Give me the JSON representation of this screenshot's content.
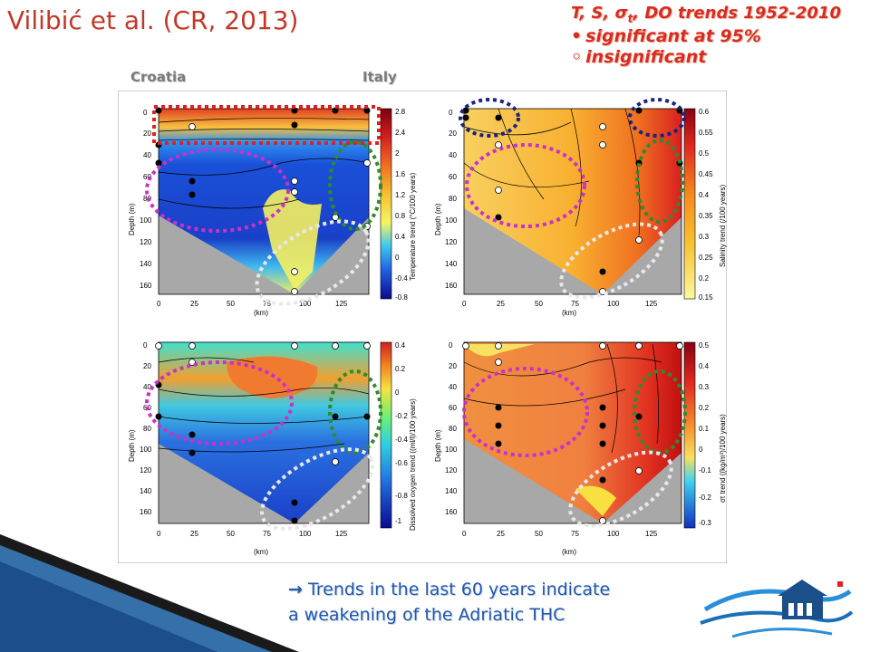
{
  "title": "Vilibić et al. (CR, 2013)",
  "legend": {
    "heading": "T, S, σ",
    "heading_sub": "t",
    "heading_rest": ", DO trends 1952-2010",
    "significant": "significant at 95%",
    "insignificant": "insignificant",
    "significant_bullet": "•",
    "insignificant_bullet": "◦"
  },
  "regions": {
    "left": "Croatia",
    "right": "Italy"
  },
  "conclusion": {
    "arrow": "→",
    "line1": "Trends in the last 60 years indicate",
    "line2": "a weakening of the Adriatic THC"
  },
  "axes": {
    "ylabel": "Depth (m)",
    "xlabel": "(km)",
    "xticks": [
      "0",
      "25",
      "50",
      "75",
      "100",
      "125"
    ],
    "yticks": [
      "0",
      "20",
      "40",
      "60",
      "80",
      "100",
      "120",
      "140",
      "160"
    ]
  },
  "panels": [
    {
      "id": "temperature",
      "colorbar_label": "Temperature trend (°C/100 years)",
      "colorbar_ticks": [
        "2.8",
        "2.4",
        "2",
        "1.6",
        "1.2",
        "0.8",
        "0.4",
        "0",
        "-0.4",
        "-0.8"
      ]
    },
    {
      "id": "salinity",
      "colorbar_label": "Salinity trend (/100 years)",
      "colorbar_ticks": [
        "0.6",
        "0.55",
        "0.5",
        "0.45",
        "0.4",
        "0.35",
        "0.3",
        "0.25",
        "0.2",
        "0.15"
      ]
    },
    {
      "id": "oxygen",
      "colorbar_label": "Dissolved oxygen trend ((ml/l)/100 years)",
      "colorbar_ticks": [
        "0.4",
        "0.2",
        "0",
        "-0.2",
        "-0.4",
        "-0.6",
        "-0.8",
        "-1"
      ]
    },
    {
      "id": "density",
      "colorbar_label": "σt trend ((kg/m³)/100 years)",
      "colorbar_ticks": [
        "0.5",
        "0.4",
        "0.3",
        "0.2",
        "0.1",
        "0",
        "-0.1",
        "-0.2",
        "-0.3"
      ]
    }
  ],
  "colors": {
    "red_highlight": "#e02020",
    "magenta_highlight": "#c832c8",
    "green_highlight": "#2e8b2e",
    "navy_highlight": "#1a237e",
    "seabed": "#a8a8a8"
  }
}
